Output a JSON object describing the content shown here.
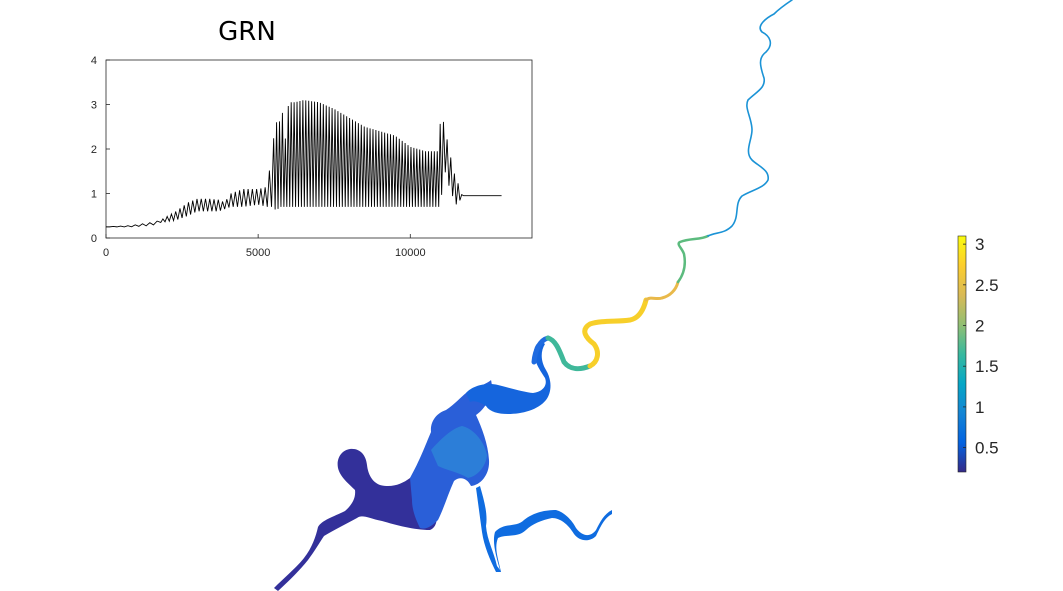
{
  "chart_data": [
    {
      "type": "line",
      "title": "GRN",
      "xlim": [
        0,
        14000
      ],
      "ylim": [
        0,
        4
      ],
      "xticks": [
        "0",
        "5000",
        "10000"
      ],
      "yticks": [
        "0",
        "1",
        "2",
        "3",
        "4"
      ],
      "line_color": "#000000",
      "series": [
        {
          "x": [
            0,
            800,
            1500,
            1800,
            2300,
            2700,
            3000,
            3400,
            3700,
            3900,
            4100,
            4500,
            5000,
            5300,
            5500,
            5600,
            5700,
            5750,
            5900,
            6000,
            6200,
            6500,
            7000,
            7500,
            8000,
            8500,
            9000,
            9500,
            10000,
            10500,
            10900,
            11000,
            11100,
            11300,
            11500,
            11600,
            11700,
            13000
          ],
          "upper": [
            0.25,
            0.28,
            0.35,
            0.4,
            0.6,
            0.8,
            0.88,
            0.88,
            0.86,
            0.8,
            1.0,
            1.1,
            1.1,
            1.15,
            2.2,
            2.6,
            2.6,
            3.1,
            2.2,
            3.05,
            3.05,
            3.1,
            3.05,
            2.9,
            2.7,
            2.5,
            2.4,
            2.3,
            2.05,
            1.95,
            1.95,
            2.7,
            2.6,
            1.9,
            1.3,
            1.2,
            0.95,
            0.95
          ],
          "lower": [
            0.25,
            0.25,
            0.28,
            0.35,
            0.4,
            0.5,
            0.6,
            0.6,
            0.6,
            0.65,
            0.7,
            0.7,
            0.75,
            0.7,
            0.7,
            0.6,
            0.7,
            0.7,
            0.7,
            0.7,
            0.7,
            0.7,
            0.7,
            0.7,
            0.7,
            0.7,
            0.7,
            0.7,
            0.7,
            0.7,
            0.7,
            0.7,
            1.6,
            1.1,
            0.75,
            0.8,
            0.95,
            0.95
          ]
        }
      ]
    },
    {
      "type": "heatmap",
      "colormap": "parula",
      "clim": [
        0.2,
        3.1
      ],
      "colorbar_ticks": [
        "0.5",
        "1",
        "1.5",
        "2",
        "2.5",
        "3"
      ],
      "colorbar_tick_values": [
        0.5,
        1,
        1.5,
        2,
        2.5,
        3
      ],
      "colormap_stops": [
        "#352a87",
        "#0363e1",
        "#1485d4",
        "#06a7c6",
        "#38b99e",
        "#92bf73",
        "#d9ba56",
        "#fcce2e",
        "#f9fb0e"
      ]
    }
  ]
}
